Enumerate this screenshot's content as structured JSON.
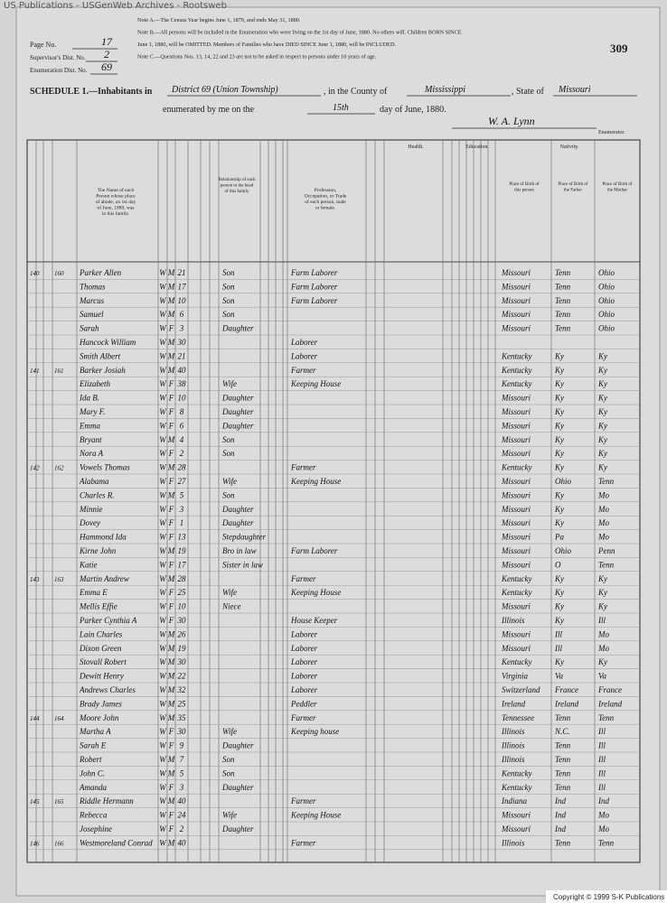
{
  "banner": "US Publications - USGenWeb Archives - Rootsweb",
  "page_number": "309",
  "page_info": {
    "page_label": "Page No.",
    "page_no": "17",
    "supervisor_label": "Supervisor's Dist. No.",
    "supervisor_no": "2",
    "enumeration_label": "Enumeration Dist. No.",
    "enumeration_no": "69"
  },
  "notes": [
    "Note A.—The Census Year begins June 1, 1879, and ends May 31, 1880.",
    "Note B.—All persons will be included in the Enumeration who were living on the 1st day of June, 1880. No others will. Children BORN SINCE",
    "June 1, 1880, will be OMITTED. Members of Families who have DIED SINCE June 1, 1880, will be INCLUDED.",
    "Note C.—Questions Nos. 13, 14, 22 and 23 are not to be asked in respect to persons under 10 years of age."
  ],
  "schedule": {
    "title": "SCHEDULE 1.—Inhabitants in",
    "district": "District 69 (Union Township)",
    "county_label": ", in the County of",
    "county": "Mississippi",
    "state_label": ", State of",
    "state": "Missouri",
    "enumerated_label": "enumerated by me on the",
    "day": "15th",
    "date_label": "day of June, 1880.",
    "enumerator": "W. A. Lynn",
    "enumerator_label": "Enumerator."
  },
  "headers": {
    "name": "The Name of each Person whose place of abode, on 1st day of June, 1880, was in this family.",
    "relationship": "Relationship of each person to the head of this family",
    "occupation": "Profession, Occupation, or Trade of each person, male or female.",
    "health": "Health.",
    "education": "Education.",
    "nativity": "Nativity.",
    "birthplace": "Place of Birth of this person",
    "father": "Place of Birth of the Father",
    "mother": "Place of Birth of the Mother"
  },
  "rows": [
    {
      "dwelling": "140",
      "family": "160",
      "name": "Parker Allen",
      "color": "W",
      "sex": "M",
      "age": 21,
      "relation": "Son",
      "occupation": "Farm Laborer",
      "birthplace": "Missouri",
      "father": "Tenn",
      "mother": "Ohio"
    },
    {
      "name": "Thomas",
      "color": "W",
      "sex": "M",
      "age": 17,
      "relation": "Son",
      "occupation": "Farm Laborer",
      "birthplace": "Missouri",
      "father": "Tenn",
      "mother": "Ohio"
    },
    {
      "name": "Marcus",
      "color": "W",
      "sex": "M",
      "age": 10,
      "relation": "Son",
      "occupation": "Farm Laborer",
      "birthplace": "Missouri",
      "father": "Tenn",
      "mother": "Ohio"
    },
    {
      "name": "Samuel",
      "color": "W",
      "sex": "M",
      "age": 6,
      "relation": "Son",
      "birthplace": "Missouri",
      "father": "Tenn",
      "mother": "Ohio"
    },
    {
      "name": "Sarah",
      "color": "W",
      "sex": "F",
      "age": 3,
      "relation": "Daughter",
      "birthplace": "Missouri",
      "father": "Tenn",
      "mother": "Ohio"
    },
    {
      "name": "Hancock William",
      "color": "W",
      "sex": "M",
      "age": 30,
      "occupation": "Laborer"
    },
    {
      "name": "Smith Albert",
      "color": "W",
      "sex": "M",
      "age": 21,
      "occupation": "Laborer",
      "birthplace": "Kentucky",
      "father": "Ky",
      "mother": "Ky"
    },
    {
      "dwelling": "141",
      "family": "161",
      "name": "Barker Josiah",
      "color": "W",
      "sex": "M",
      "age": 40,
      "occupation": "Farmer",
      "birthplace": "Kentucky",
      "father": "Ky",
      "mother": "Ky"
    },
    {
      "name": "Elizabeth",
      "color": "W",
      "sex": "F",
      "age": 38,
      "relation": "Wife",
      "occupation": "Keeping House",
      "birthplace": "Kentucky",
      "father": "Ky",
      "mother": "Ky"
    },
    {
      "name": "Ida B.",
      "color": "W",
      "sex": "F",
      "age": 10,
      "relation": "Daughter",
      "birthplace": "Missouri",
      "father": "Ky",
      "mother": "Ky"
    },
    {
      "name": "Mary F.",
      "color": "W",
      "sex": "F",
      "age": 8,
      "relation": "Daughter",
      "birthplace": "Missouri",
      "father": "Ky",
      "mother": "Ky"
    },
    {
      "name": "Emma",
      "color": "W",
      "sex": "F",
      "age": 6,
      "relation": "Daughter",
      "birthplace": "Missouri",
      "father": "Ky",
      "mother": "Ky"
    },
    {
      "name": "Bryant",
      "color": "W",
      "sex": "M",
      "age": 4,
      "relation": "Son",
      "birthplace": "Missouri",
      "father": "Ky",
      "mother": "Ky"
    },
    {
      "name": "Nora A",
      "color": "W",
      "sex": "F",
      "age": 2,
      "relation": "Son",
      "birthplace": "Missouri",
      "father": "Ky",
      "mother": "Ky"
    },
    {
      "dwelling": "142",
      "family": "162",
      "name": "Vowels Thomas",
      "color": "W",
      "sex": "M",
      "age": 28,
      "occupation": "Farmer",
      "birthplace": "Kentucky",
      "father": "Ky",
      "mother": "Ky"
    },
    {
      "name": "Alabama",
      "color": "W",
      "sex": "F",
      "age": 27,
      "relation": "Wife",
      "occupation": "Keeping House",
      "birthplace": "Missouri",
      "father": "Ohio",
      "mother": "Tenn"
    },
    {
      "name": "Charles R.",
      "color": "W",
      "sex": "M",
      "age": 5,
      "relation": "Son",
      "birthplace": "Missouri",
      "father": "Ky",
      "mother": "Mo"
    },
    {
      "name": "Minnie",
      "color": "W",
      "sex": "F",
      "age": 3,
      "relation": "Daughter",
      "birthplace": "Missouri",
      "father": "Ky",
      "mother": "Mo"
    },
    {
      "name": "Dovey",
      "color": "W",
      "sex": "F",
      "age": 1,
      "relation": "Daughter",
      "birthplace": "Missouri",
      "father": "Ky",
      "mother": "Mo"
    },
    {
      "name": "Hammond Ida",
      "color": "W",
      "sex": "F",
      "age": 13,
      "relation": "Stepdaughter",
      "birthplace": "Missouri",
      "father": "Pa",
      "mother": "Mo"
    },
    {
      "name": "Kirne John",
      "color": "W",
      "sex": "M",
      "age": 19,
      "relation": "Bro in law",
      "occupation": "Farm Laborer",
      "birthplace": "Missouri",
      "father": "Ohio",
      "mother": "Penn"
    },
    {
      "name": "Katie",
      "color": "W",
      "sex": "F",
      "age": 17,
      "relation": "Sister in law",
      "birthplace": "Missouri",
      "father": "O",
      "mother": "Tenn"
    },
    {
      "dwelling": "143",
      "family": "163",
      "name": "Martin Andrew",
      "color": "W",
      "sex": "M",
      "age": 28,
      "occupation": "Farmer",
      "birthplace": "Kentucky",
      "father": "Ky",
      "mother": "Ky"
    },
    {
      "name": "Emma E",
      "color": "W",
      "sex": "F",
      "age": 25,
      "relation": "Wife",
      "occupation": "Keeping House",
      "birthplace": "Kentucky",
      "father": "Ky",
      "mother": "Ky"
    },
    {
      "name": "Mellis Effie",
      "color": "W",
      "sex": "F",
      "age": 10,
      "relation": "Niece",
      "birthplace": "Missouri",
      "father": "Ky",
      "mother": "Ky"
    },
    {
      "name": "Parker Cynthia A",
      "color": "W",
      "sex": "F",
      "age": 30,
      "occupation": "House Keeper",
      "birthplace": "Illinois",
      "father": "Ky",
      "mother": "Ill"
    },
    {
      "name": "Lain Charles",
      "color": "W",
      "sex": "M",
      "age": 26,
      "occupation": "Laborer",
      "birthplace": "Missouri",
      "father": "Ill",
      "mother": "Mo"
    },
    {
      "name": "Dixon Green",
      "color": "W",
      "sex": "M",
      "age": 19,
      "occupation": "Laborer",
      "birthplace": "Missouri",
      "father": "Ill",
      "mother": "Mo"
    },
    {
      "name": "Stovall Robert",
      "color": "W",
      "sex": "M",
      "age": 30,
      "occupation": "Laborer",
      "birthplace": "Kentucky",
      "father": "Ky",
      "mother": "Ky"
    },
    {
      "name": "Dewitt Henry",
      "color": "W",
      "sex": "M",
      "age": 22,
      "occupation": "Laborer",
      "birthplace": "Virginia",
      "father": "Va",
      "mother": "Va"
    },
    {
      "name": "Andrews Charles",
      "color": "W",
      "sex": "M",
      "age": 32,
      "occupation": "Laborer",
      "birthplace": "Switzerland",
      "father": "France",
      "mother": "France"
    },
    {
      "name": "Brady James",
      "color": "W",
      "sex": "M",
      "age": 25,
      "occupation": "Peddler",
      "birthplace": "Ireland",
      "father": "Ireland",
      "mother": "Ireland"
    },
    {
      "dwelling": "144",
      "family": "164",
      "name": "Moore John",
      "color": "W",
      "sex": "M",
      "age": 35,
      "occupation": "Farmer",
      "birthplace": "Tennessee",
      "father": "Tenn",
      "mother": "Tenn"
    },
    {
      "name": "Martha A",
      "color": "W",
      "sex": "F",
      "age": 30,
      "relation": "Wife",
      "occupation": "Keeping house",
      "birthplace": "Illinois",
      "father": "N.C.",
      "mother": "Ill"
    },
    {
      "name": "Sarah E",
      "color": "W",
      "sex": "F",
      "age": 9,
      "relation": "Daughter",
      "birthplace": "Illinois",
      "father": "Tenn",
      "mother": "Ill"
    },
    {
      "name": "Robert",
      "color": "W",
      "sex": "M",
      "age": 7,
      "relation": "Son",
      "birthplace": "Illinois",
      "father": "Tenn",
      "mother": "Ill"
    },
    {
      "name": "John C.",
      "color": "W",
      "sex": "M",
      "age": 5,
      "relation": "Son",
      "birthplace": "Kentucky",
      "father": "Tenn",
      "mother": "Ill"
    },
    {
      "name": "Amanda",
      "color": "W",
      "sex": "F",
      "age": 3,
      "relation": "Daughter",
      "birthplace": "Kentucky",
      "father": "Tenn",
      "mother": "Ill"
    },
    {
      "dwelling": "145",
      "family": "165",
      "name": "Riddle Hermann",
      "color": "W",
      "sex": "M",
      "age": 40,
      "occupation": "Farmer",
      "birthplace": "Indiana",
      "father": "Ind",
      "mother": "Ind"
    },
    {
      "name": "Rebecca",
      "color": "W",
      "sex": "F",
      "age": 24,
      "relation": "Wife",
      "occupation": "Keeping House",
      "birthplace": "Missouri",
      "father": "Ind",
      "mother": "Mo"
    },
    {
      "name": "Josephine",
      "color": "W",
      "sex": "F",
      "age": 2,
      "relation": "Daughter",
      "birthplace": "Missouri",
      "father": "Ind",
      "mother": "Mo"
    },
    {
      "dwelling": "146",
      "family": "166",
      "name": "Westmoreland Conrad",
      "color": "W",
      "sex": "M",
      "age": 40,
      "occupation": "Farmer",
      "birthplace": "Illinois",
      "father": "Tenn",
      "mother": "Tenn"
    }
  ],
  "copyright": "Copyright © 1999 S-K Publications"
}
